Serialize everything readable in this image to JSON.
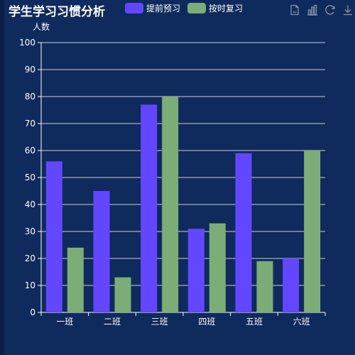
{
  "title": "学生学习习惯分析",
  "toolbox": [
    "save-image-icon",
    "bar-chart-icon",
    "restore-icon",
    "download-icon"
  ],
  "colors": {
    "background": "#0f2a5c",
    "series1": "#6347ff",
    "series2": "#7dad77",
    "axis": "#ffffff",
    "toolbox": "#8a94a8"
  },
  "chart_data": {
    "type": "bar",
    "title": "学生学习习惯分析",
    "ylabel": "人数",
    "xlabel": "",
    "categories": [
      "一班",
      "二班",
      "三班",
      "四班",
      "五班",
      "六班"
    ],
    "series": [
      {
        "name": "提前预习",
        "values": [
          56,
          45,
          77,
          31,
          59,
          20
        ],
        "color": "#6347ff"
      },
      {
        "name": "按时复习",
        "values": [
          24,
          13,
          80,
          33,
          19,
          60
        ],
        "color": "#7dad77"
      }
    ],
    "ylim": [
      0,
      100
    ],
    "yticks": [
      0,
      10,
      20,
      30,
      40,
      50,
      60,
      70,
      80,
      90,
      100
    ],
    "grid": true,
    "legend": "top"
  }
}
